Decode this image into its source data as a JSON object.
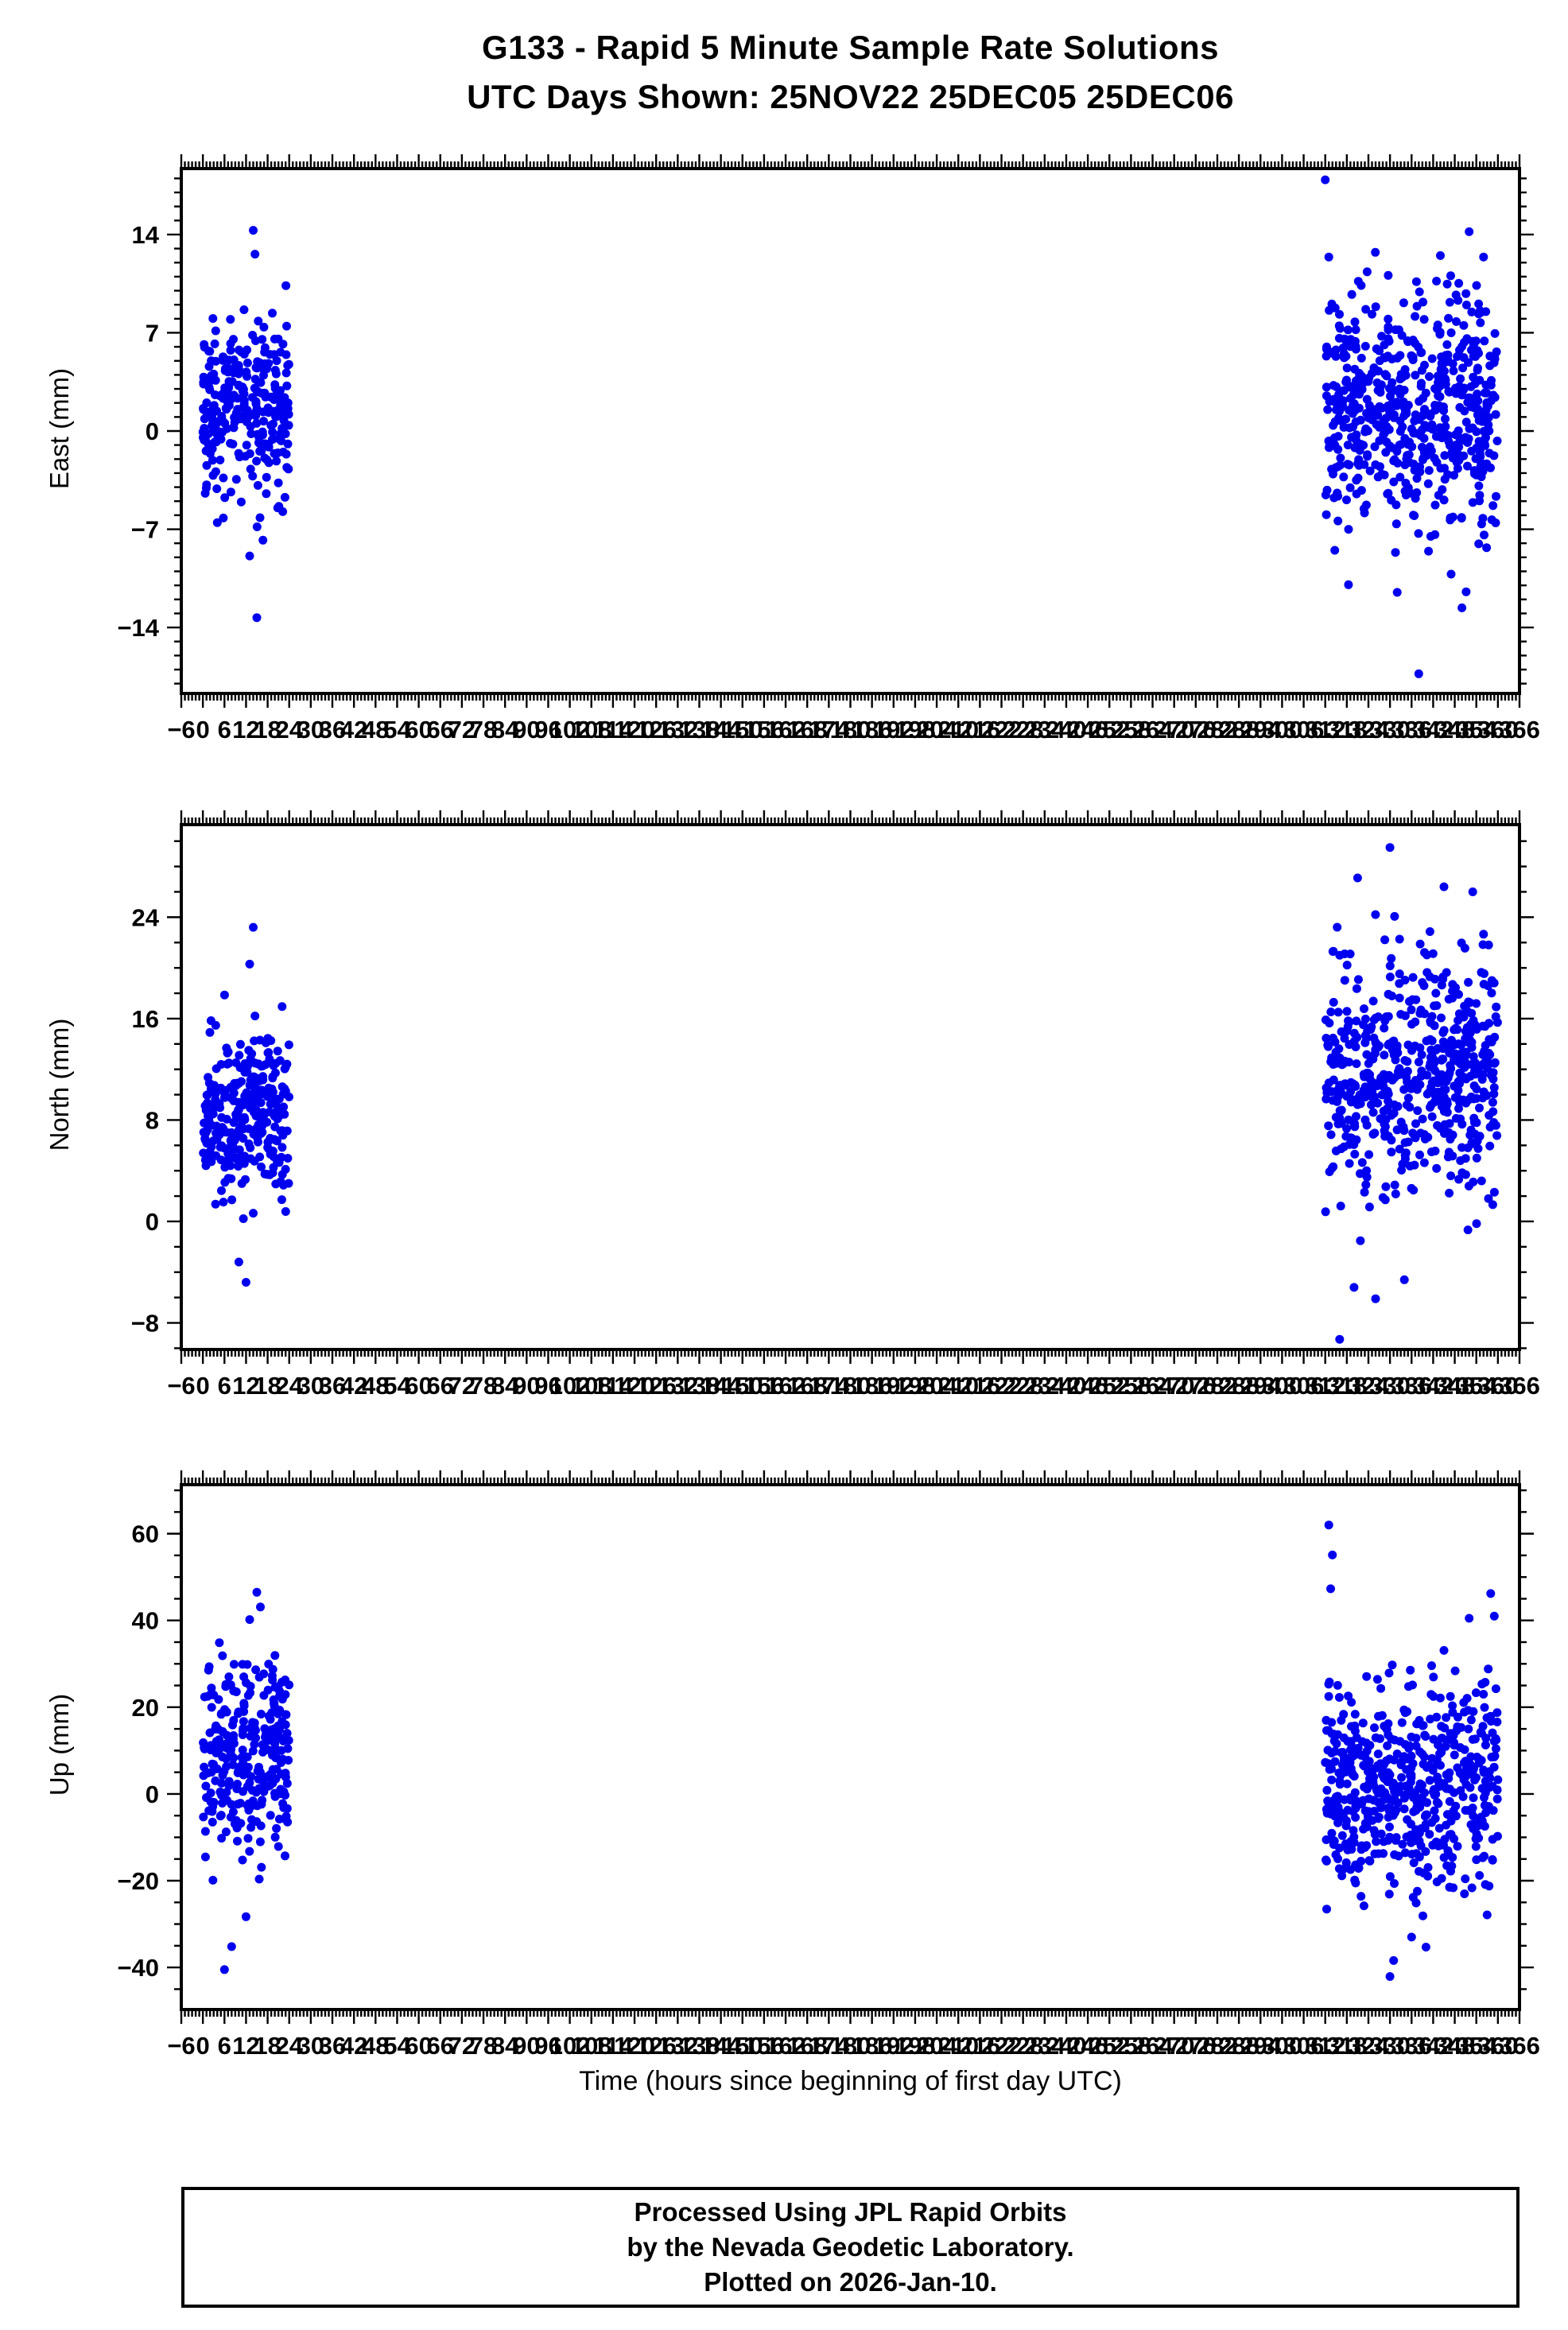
{
  "title": "G133 - Rapid 5 Minute Sample Rate Solutions",
  "subtitle": "UTC Days Shown:  25NOV22 25DEC05 25DEC06",
  "xlabel": "Time (hours since beginning of first day UTC)",
  "footer_lines": [
    "Processed Using JPL Rapid Orbits",
    "by the Nevada Geodetic Laboratory.",
    "Plotted on 2026-Jan-10."
  ],
  "marker_color": "#0000EE",
  "x_axis": {
    "lim": [
      -6,
      366
    ],
    "tick_step": 6,
    "minor_step": 1
  },
  "chart_data": [
    {
      "type": "scatter",
      "ylabel": "East (mm)",
      "ylim": [
        -18.7,
        18.7
      ],
      "yticks": [
        -14,
        -7,
        0,
        7,
        14
      ],
      "y_minor_step": 1,
      "clusters": [
        {
          "x_range": [
            0,
            24
          ],
          "count": 288,
          "y_mean": 1.5,
          "y_std": 3.2,
          "y_range": [
            -9,
            11
          ]
        },
        {
          "x_range": [
            312,
            360
          ],
          "count": 576,
          "y_mean": 1.5,
          "y_std": 4.4,
          "y_range": [
            -12,
            13
          ]
        }
      ],
      "outliers": [
        [
          14,
          14.3
        ],
        [
          14.5,
          12.6
        ],
        [
          15,
          -13.3
        ],
        [
          13,
          -8.9
        ],
        [
          312,
          17.9
        ],
        [
          313,
          12.4
        ],
        [
          338,
          -17.3
        ],
        [
          352,
          14.2
        ],
        [
          344,
          12.5
        ],
        [
          350,
          -12.6
        ],
        [
          347,
          -10.2
        ],
        [
          356,
          12.4
        ],
        [
          332,
          -11.5
        ]
      ]
    },
    {
      "type": "scatter",
      "ylabel": "North (mm)",
      "ylim": [
        -10.1,
        31.3
      ],
      "yticks": [
        -8,
        0,
        8,
        16,
        24
      ],
      "y_minor_step": 2,
      "clusters": [
        {
          "x_range": [
            0,
            24
          ],
          "count": 288,
          "y_mean": 8.5,
          "y_std": 3.4,
          "y_range": [
            -2,
            18
          ]
        },
        {
          "x_range": [
            312,
            360
          ],
          "count": 576,
          "y_mean": 11.5,
          "y_std": 4.6,
          "y_range": [
            -3,
            26
          ]
        }
      ],
      "outliers": [
        [
          14,
          23.2
        ],
        [
          13,
          20.3
        ],
        [
          12,
          -4.8
        ],
        [
          10,
          -3.2
        ],
        [
          330,
          29.5
        ],
        [
          321,
          27.1
        ],
        [
          345,
          26.4
        ],
        [
          353,
          26.0
        ],
        [
          316,
          -9.3
        ],
        [
          326,
          -6.1
        ],
        [
          334,
          -4.6
        ],
        [
          320,
          -5.2
        ]
      ]
    },
    {
      "type": "scatter",
      "ylabel": "Up (mm)",
      "ylim": [
        -49.7,
        71.3
      ],
      "yticks": [
        -40,
        -20,
        0,
        20,
        40,
        60
      ],
      "y_minor_step": 5,
      "clusters": [
        {
          "x_range": [
            0,
            24
          ],
          "count": 288,
          "y_mean": 8,
          "y_std": 12,
          "y_range": [
            -25,
            35
          ]
        },
        {
          "x_range": [
            312,
            360
          ],
          "count": 576,
          "y_mean": 2,
          "y_std": 12,
          "y_range": [
            -30,
            32
          ]
        }
      ],
      "outliers": [
        [
          15,
          46.5
        ],
        [
          13,
          40.2
        ],
        [
          16,
          43.1
        ],
        [
          8,
          -35.2
        ],
        [
          6,
          -40.5
        ],
        [
          12,
          -28.3
        ],
        [
          313,
          62.0
        ],
        [
          314,
          55.1
        ],
        [
          313.5,
          47.3
        ],
        [
          330,
          -42.1
        ],
        [
          331,
          -38.4
        ],
        [
          352,
          40.5
        ],
        [
          358,
          46.2
        ],
        [
          359,
          41.0
        ],
        [
          340,
          -35.3
        ],
        [
          345,
          33.1
        ],
        [
          336,
          -33.0
        ]
      ]
    }
  ]
}
